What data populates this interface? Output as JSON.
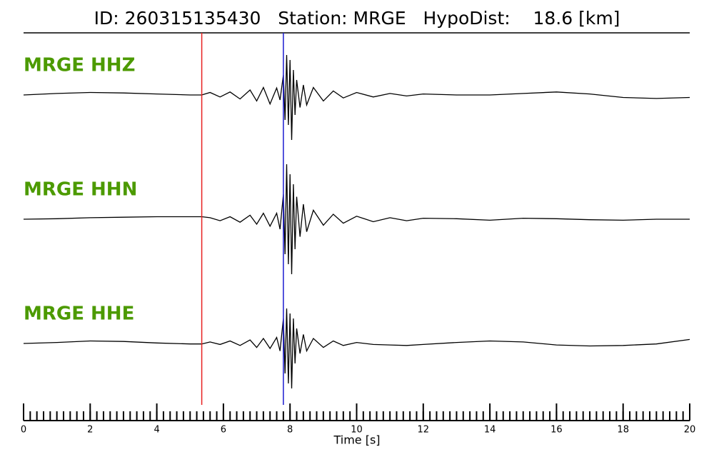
{
  "chart_data": {
    "type": "waveform",
    "title": "ID: 260315135430   Station: MRGE   HypoDist:    18.6 [km]",
    "xlabel": "Time [s]",
    "xlim": [
      0,
      20
    ],
    "xticks": [
      0,
      2,
      4,
      6,
      8,
      10,
      12,
      14,
      16,
      18,
      20
    ],
    "xminor_interval": 0.2,
    "label_color": "#4c9a00",
    "trace_color": "#000000",
    "picks": [
      {
        "x": 5.35,
        "color": "#e8201f"
      },
      {
        "x": 7.8,
        "color": "#1a1ad0"
      }
    ],
    "x": [
      0,
      1,
      2,
      3,
      4,
      5,
      5.35,
      5.6,
      5.9,
      6.2,
      6.5,
      6.8,
      7.0,
      7.2,
      7.4,
      7.6,
      7.7,
      7.8,
      7.85,
      7.9,
      7.95,
      8.0,
      8.05,
      8.1,
      8.15,
      8.2,
      8.3,
      8.4,
      8.5,
      8.7,
      9.0,
      9.3,
      9.6,
      10,
      10.5,
      11,
      11.5,
      12,
      13,
      14,
      15,
      16,
      17,
      18,
      19,
      20
    ],
    "series": [
      {
        "name": "MRGE HHZ",
        "values": [
          0,
          0.03,
          0.05,
          0.04,
          0.02,
          0,
          0,
          0.05,
          -0.04,
          0.06,
          -0.08,
          0.1,
          -0.12,
          0.15,
          -0.18,
          0.14,
          -0.1,
          0.4,
          -0.5,
          0.8,
          -0.6,
          0.7,
          -0.9,
          0.5,
          -0.4,
          0.3,
          -0.25,
          0.2,
          -0.2,
          0.15,
          -0.12,
          0.08,
          -0.06,
          0.05,
          -0.04,
          0.03,
          -0.02,
          0.02,
          0,
          0,
          0.03,
          0.06,
          0.02,
          -0.05,
          -0.07,
          -0.05
        ]
      },
      {
        "name": "MRGE HHN",
        "values": [
          0,
          0.01,
          0.03,
          0.04,
          0.05,
          0.05,
          0.05,
          0.03,
          -0.03,
          0.05,
          -0.06,
          0.08,
          -0.1,
          0.12,
          -0.14,
          0.12,
          -0.2,
          0.5,
          -0.7,
          1.1,
          -0.9,
          0.9,
          -1.1,
          0.7,
          -0.6,
          0.45,
          -0.35,
          0.3,
          -0.25,
          0.18,
          -0.12,
          0.1,
          -0.08,
          0.06,
          -0.05,
          0.03,
          -0.03,
          0.02,
          0.01,
          -0.02,
          0.02,
          0.01,
          -0.01,
          -0.02,
          0,
          0
        ]
      },
      {
        "name": "MRGE HHE",
        "values": [
          0,
          0.02,
          0.05,
          0.04,
          0.01,
          -0.01,
          -0.01,
          0.03,
          -0.02,
          0.05,
          -0.04,
          0.07,
          -0.08,
          0.1,
          -0.1,
          0.12,
          -0.15,
          0.5,
          -0.6,
          0.7,
          -0.8,
          0.6,
          -0.9,
          0.5,
          -0.4,
          0.3,
          -0.2,
          0.18,
          -0.15,
          0.1,
          -0.08,
          0.05,
          -0.04,
          0.02,
          -0.02,
          -0.03,
          -0.04,
          -0.02,
          0.02,
          0.05,
          0.03,
          -0.03,
          -0.05,
          -0.04,
          -0.01,
          0.08
        ]
      }
    ]
  }
}
